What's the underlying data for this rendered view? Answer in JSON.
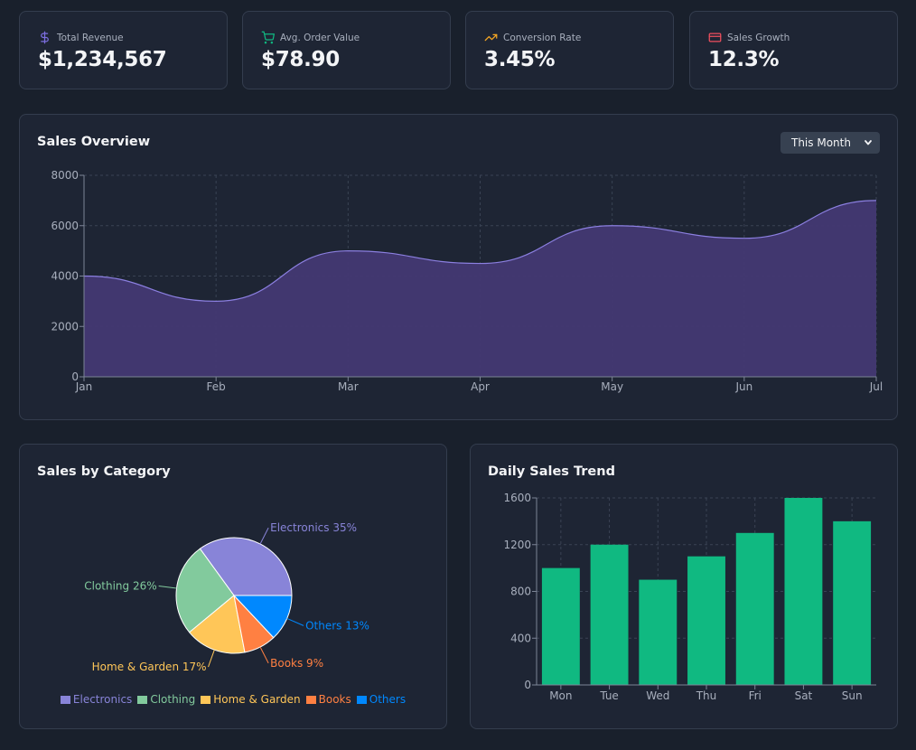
{
  "stats": [
    {
      "label": "Total Revenue",
      "value": "$1,234,567",
      "icon": "dollar-icon",
      "icon_color": "#7c6fe0"
    },
    {
      "label": "Avg. Order Value",
      "value": "$78.90",
      "icon": "cart-icon",
      "icon_color": "#10b981"
    },
    {
      "label": "Conversion Rate",
      "value": "3.45%",
      "icon": "trend-up-icon",
      "icon_color": "#f5a623"
    },
    {
      "label": "Sales Growth",
      "value": "12.3%",
      "icon": "credit-card-icon",
      "icon_color": "#ef4f5e"
    }
  ],
  "sales_overview": {
    "title": "Sales Overview",
    "range_select": {
      "value": "This Month"
    }
  },
  "sales_by_category": {
    "title": "Sales by Category"
  },
  "daily_sales": {
    "title": "Daily Sales Trend"
  },
  "colors": {
    "area_fill": "#433873",
    "area_line": "#8b7fe0",
    "bar": "#10b981"
  },
  "chart_data": [
    {
      "type": "area",
      "title": "Sales Overview",
      "categories": [
        "Jan",
        "Feb",
        "Mar",
        "Apr",
        "May",
        "Jun",
        "Jul"
      ],
      "values": [
        4000,
        3000,
        5000,
        4500,
        6000,
        5500,
        7000
      ],
      "yticks": [
        0,
        2000,
        4000,
        6000,
        8000
      ],
      "ylim": [
        0,
        8000
      ],
      "grid": true,
      "xlabel": "",
      "ylabel": ""
    },
    {
      "type": "pie",
      "title": "Sales by Category",
      "slices": [
        {
          "label": "Electronics",
          "value": 35,
          "color": "#8884d8"
        },
        {
          "label": "Clothing",
          "value": 26,
          "color": "#82ca9d"
        },
        {
          "label": "Home & Garden",
          "value": 17,
          "color": "#ffc658"
        },
        {
          "label": "Books",
          "value": 9,
          "color": "#ff8042"
        },
        {
          "label": "Others",
          "value": 13,
          "color": "#0088fe"
        }
      ],
      "legend": "bottom"
    },
    {
      "type": "bar",
      "title": "Daily Sales Trend",
      "categories": [
        "Mon",
        "Tue",
        "Wed",
        "Thu",
        "Fri",
        "Sat",
        "Sun"
      ],
      "values": [
        1000,
        1200,
        900,
        1100,
        1300,
        1600,
        1400
      ],
      "yticks": [
        0,
        400,
        800,
        1200,
        1600
      ],
      "ylim": [
        0,
        1600
      ],
      "grid": true,
      "xlabel": "",
      "ylabel": ""
    }
  ]
}
